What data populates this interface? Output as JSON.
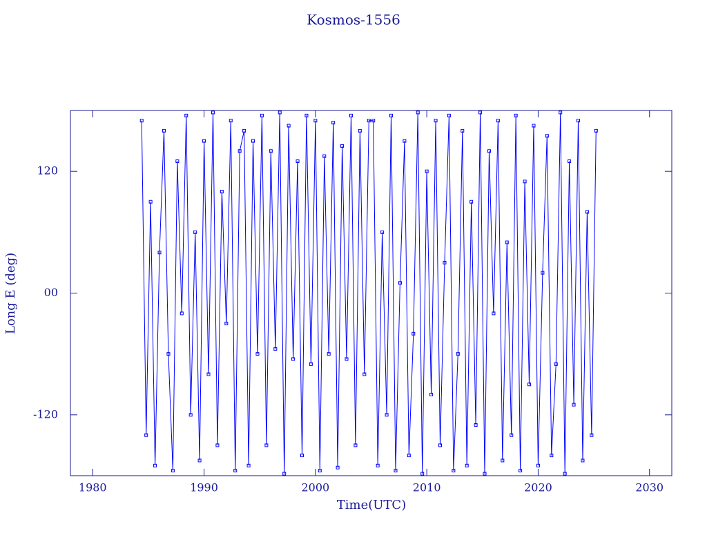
{
  "chart_data": {
    "type": "line",
    "title": "Kosmos-1556",
    "x_label": "Time(UTC)",
    "y_label": "Long E (deg)",
    "color": "#0000ff",
    "xlim": [
      1978,
      2032
    ],
    "xticks": [
      1980,
      1990,
      2000,
      2010,
      2020,
      2030
    ],
    "ylim": [
      -180,
      180
    ],
    "yticks": [
      -120,
      {
        "value": 0,
        "label": "00"
      },
      120
    ],
    "x": [
      1984.4,
      1984.8,
      1985.2,
      1985.6,
      1986.0,
      1986.4,
      1986.8,
      1987.2,
      1987.6,
      1988.0,
      1988.4,
      1988.8,
      1989.2,
      1989.6,
      1990.0,
      1990.4,
      1990.8,
      1991.2,
      1991.6,
      1992.0,
      1992.4,
      1992.8,
      1993.2,
      1993.6,
      1994.0,
      1994.4,
      1994.8,
      1995.2,
      1995.6,
      1996.0,
      1996.4,
      1996.8,
      1997.2,
      1997.6,
      1998.0,
      1998.4,
      1998.8,
      1999.2,
      1999.6,
      2000.0,
      2000.4,
      2000.8,
      2001.2,
      2001.6,
      2002.0,
      2002.4,
      2002.8,
      2003.2,
      2003.6,
      2004.0,
      2004.4,
      2004.8,
      2005.2,
      2005.6,
      2006.0,
      2006.4,
      2006.8,
      2007.2,
      2007.6,
      2008.0,
      2008.4,
      2008.8,
      2009.2,
      2009.6,
      2010.0,
      2010.4,
      2010.8,
      2011.2,
      2011.6,
      2012.0,
      2012.4,
      2012.8,
      2013.2,
      2013.6,
      2014.0,
      2014.4,
      2014.8,
      2015.2,
      2015.6,
      2016.0,
      2016.4,
      2016.8,
      2017.2,
      2017.6,
      2018.0,
      2018.4,
      2018.8,
      2019.2,
      2019.6,
      2020.0,
      2020.4,
      2020.8,
      2021.2,
      2021.6,
      2022.0,
      2022.4,
      2022.8,
      2023.2,
      2023.6,
      2024.0,
      2024.4,
      2024.8,
      2025.2
    ],
    "values": [
      170,
      -140,
      90,
      -170,
      40,
      160,
      -60,
      -175,
      130,
      -20,
      175,
      -120,
      60,
      -165,
      150,
      -80,
      178,
      -150,
      100,
      -30,
      170,
      -175,
      140,
      160,
      -170,
      150,
      -60,
      175,
      -150,
      140,
      -55,
      178,
      -178,
      165,
      -65,
      130,
      -160,
      175,
      -70,
      170,
      -175,
      135,
      -60,
      168,
      -172,
      145,
      -65,
      175,
      -150,
      160,
      -80,
      170,
      170,
      -170,
      60,
      -120,
      175,
      -175,
      10,
      150,
      -160,
      -40,
      178,
      -178,
      120,
      -100,
      170,
      -150,
      30,
      175,
      -175,
      -60,
      160,
      -170,
      90,
      -130,
      178,
      -178,
      140,
      -20,
      170,
      -165,
      50,
      -140,
      175,
      -175,
      110,
      -90,
      165,
      -170,
      20,
      155,
      -160,
      -70,
      178,
      -178,
      130,
      -110,
      170,
      -165,
      80,
      -140,
      160
    ]
  }
}
